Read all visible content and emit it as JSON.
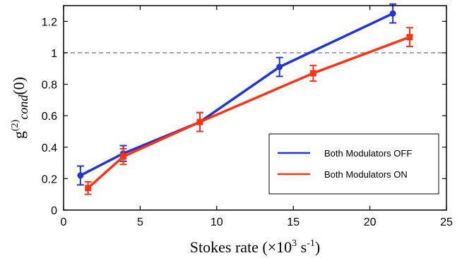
{
  "chart_data": {
    "type": "line",
    "xlabel": {
      "prefix": "Stokes rate (×10",
      "sup": "3",
      "middle": " s",
      "sup2": "-1",
      "suffix": ")"
    },
    "ylabel": {
      "main": "g",
      "sup": "(2)",
      "sub": "cond",
      "suffix": "(0)"
    },
    "xlim": [
      0,
      25
    ],
    "ylim": [
      0,
      1.3
    ],
    "xticks": [
      "0",
      "5",
      "10",
      "15",
      "20",
      "25"
    ],
    "yticks": [
      "0",
      "0.2",
      "0.4",
      "0.6",
      "0.8",
      "1",
      "1.2"
    ],
    "grid": false,
    "reference_line": {
      "y": 1,
      "style": "dashed",
      "color": "#808080"
    },
    "legend": {
      "placement": "right"
    },
    "series": [
      {
        "name": "Both Modulators OFF",
        "color": "#1f35d6",
        "marker": "circle",
        "x": [
          1.1,
          3.9,
          8.9,
          14.1,
          21.5
        ],
        "y": [
          0.22,
          0.36,
          0.56,
          0.91,
          1.25
        ],
        "err": [
          0.06,
          0.05,
          0.06,
          0.06,
          0.06
        ]
      },
      {
        "name": "Both Modulators ON",
        "color": "#ff3212",
        "marker": "square",
        "x": [
          1.6,
          3.9,
          8.9,
          16.3,
          22.6
        ],
        "y": [
          0.14,
          0.34,
          0.56,
          0.87,
          1.1
        ],
        "err": [
          0.04,
          0.05,
          0.06,
          0.05,
          0.06
        ]
      }
    ]
  }
}
